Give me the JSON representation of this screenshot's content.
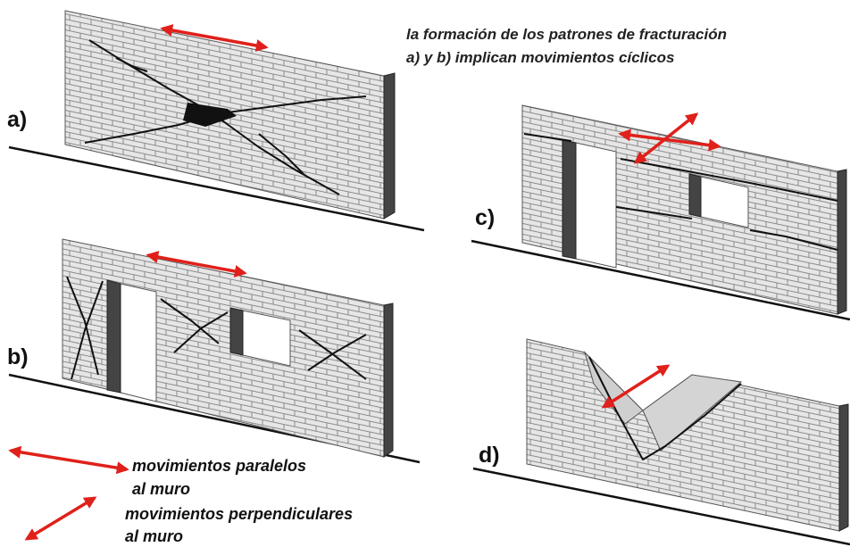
{
  "caption": [
    "la formación de los patrones de fracturación",
    "a) y b) implican movimientos cíclicos"
  ],
  "panels": [
    {
      "label": "a)"
    },
    {
      "label": "b)"
    },
    {
      "label": "c)"
    },
    {
      "label": "d)"
    }
  ],
  "legend": [
    {
      "lines": [
        "movimientos paralelos",
        "al muro"
      ]
    },
    {
      "lines": [
        "movimientos perpendiculares",
        "al muro"
      ]
    }
  ]
}
